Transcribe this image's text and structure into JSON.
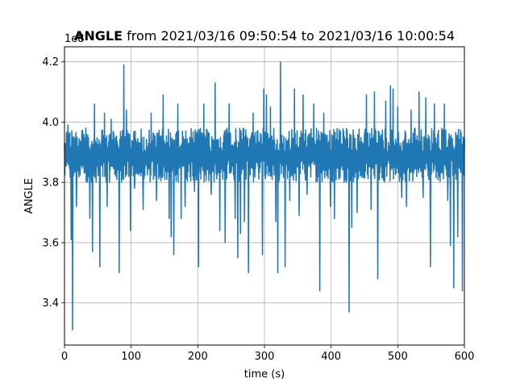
{
  "chart_data": {
    "type": "line",
    "title_bold": "ANGLE",
    "title_rest": " from 2021/03/16 09:50:54 to 2021/03/16 10:00:54",
    "xlabel": "time (s)",
    "ylabel": "ANGLE",
    "offset_text": "1e8",
    "xlim": [
      0,
      600
    ],
    "ylim": [
      3.26,
      4.25
    ],
    "xticks": [
      0,
      100,
      200,
      300,
      400,
      500,
      600
    ],
    "yticks": [
      3.4,
      3.6,
      3.8,
      4.0,
      4.2
    ],
    "xtick_labels": [
      "0",
      "100",
      "200",
      "300",
      "400",
      "500",
      "600"
    ],
    "ytick_labels": [
      "3.4",
      "3.6",
      "3.8",
      "4.0",
      "4.2"
    ],
    "grid": true,
    "line_color": "#1f77b4",
    "band": {
      "low": 3.8,
      "high": 3.98
    },
    "spikes": [
      {
        "x": 5,
        "y": 3.99
      },
      {
        "x": 10,
        "y": 3.61
      },
      {
        "x": 12,
        "y": 3.31
      },
      {
        "x": 18,
        "y": 3.72
      },
      {
        "x": 25,
        "y": 3.93
      },
      {
        "x": 32,
        "y": 3.98
      },
      {
        "x": 38,
        "y": 3.68
      },
      {
        "x": 42,
        "y": 3.57
      },
      {
        "x": 45,
        "y": 4.06
      },
      {
        "x": 53,
        "y": 3.52
      },
      {
        "x": 60,
        "y": 4.03
      },
      {
        "x": 64,
        "y": 3.72
      },
      {
        "x": 70,
        "y": 4.01
      },
      {
        "x": 82,
        "y": 3.5
      },
      {
        "x": 89,
        "y": 4.19
      },
      {
        "x": 93,
        "y": 4.04
      },
      {
        "x": 99,
        "y": 3.64
      },
      {
        "x": 105,
        "y": 3.78
      },
      {
        "x": 118,
        "y": 3.71
      },
      {
        "x": 130,
        "y": 4.03
      },
      {
        "x": 138,
        "y": 3.74
      },
      {
        "x": 148,
        "y": 4.09
      },
      {
        "x": 157,
        "y": 3.68
      },
      {
        "x": 160,
        "y": 3.62
      },
      {
        "x": 164,
        "y": 3.56
      },
      {
        "x": 170,
        "y": 4.06
      },
      {
        "x": 175,
        "y": 3.68
      },
      {
        "x": 181,
        "y": 3.72
      },
      {
        "x": 195,
        "y": 3.77
      },
      {
        "x": 201,
        "y": 3.52
      },
      {
        "x": 209,
        "y": 4.06
      },
      {
        "x": 220,
        "y": 3.76
      },
      {
        "x": 226,
        "y": 4.13
      },
      {
        "x": 233,
        "y": 3.64
      },
      {
        "x": 241,
        "y": 3.6
      },
      {
        "x": 247,
        "y": 4.06
      },
      {
        "x": 256,
        "y": 3.68
      },
      {
        "x": 260,
        "y": 3.55
      },
      {
        "x": 264,
        "y": 3.63
      },
      {
        "x": 270,
        "y": 3.67
      },
      {
        "x": 276,
        "y": 3.5
      },
      {
        "x": 283,
        "y": 4.03
      },
      {
        "x": 297,
        "y": 3.56
      },
      {
        "x": 299,
        "y": 4.11
      },
      {
        "x": 303,
        "y": 4.09
      },
      {
        "x": 309,
        "y": 4.05
      },
      {
        "x": 317,
        "y": 3.67
      },
      {
        "x": 320,
        "y": 3.5
      },
      {
        "x": 324,
        "y": 4.2
      },
      {
        "x": 331,
        "y": 3.52
      },
      {
        "x": 338,
        "y": 3.74
      },
      {
        "x": 345,
        "y": 4.11
      },
      {
        "x": 352,
        "y": 3.69
      },
      {
        "x": 358,
        "y": 4.09
      },
      {
        "x": 364,
        "y": 3.76
      },
      {
        "x": 374,
        "y": 4.06
      },
      {
        "x": 383,
        "y": 3.44
      },
      {
        "x": 389,
        "y": 4.03
      },
      {
        "x": 399,
        "y": 3.72
      },
      {
        "x": 405,
        "y": 3.68
      },
      {
        "x": 414,
        "y": 3.97
      },
      {
        "x": 420,
        "y": 3.95
      },
      {
        "x": 427,
        "y": 3.37
      },
      {
        "x": 431,
        "y": 3.65
      },
      {
        "x": 439,
        "y": 3.7
      },
      {
        "x": 453,
        "y": 4.09
      },
      {
        "x": 460,
        "y": 3.71
      },
      {
        "x": 465,
        "y": 4.1
      },
      {
        "x": 470,
        "y": 3.48
      },
      {
        "x": 482,
        "y": 4.07
      },
      {
        "x": 489,
        "y": 4.12
      },
      {
        "x": 493,
        "y": 4.11
      },
      {
        "x": 500,
        "y": 4.05
      },
      {
        "x": 506,
        "y": 3.75
      },
      {
        "x": 513,
        "y": 3.72
      },
      {
        "x": 520,
        "y": 4.04
      },
      {
        "x": 532,
        "y": 4.1
      },
      {
        "x": 538,
        "y": 3.75
      },
      {
        "x": 542,
        "y": 4.08
      },
      {
        "x": 549,
        "y": 3.52
      },
      {
        "x": 555,
        "y": 4.06
      },
      {
        "x": 565,
        "y": 3.88
      },
      {
        "x": 570,
        "y": 4.06
      },
      {
        "x": 575,
        "y": 3.74
      },
      {
        "x": 579,
        "y": 3.59
      },
      {
        "x": 584,
        "y": 3.45
      },
      {
        "x": 590,
        "y": 3.62
      },
      {
        "x": 597,
        "y": 3.44
      },
      {
        "x": 599,
        "y": 3.89
      }
    ]
  }
}
